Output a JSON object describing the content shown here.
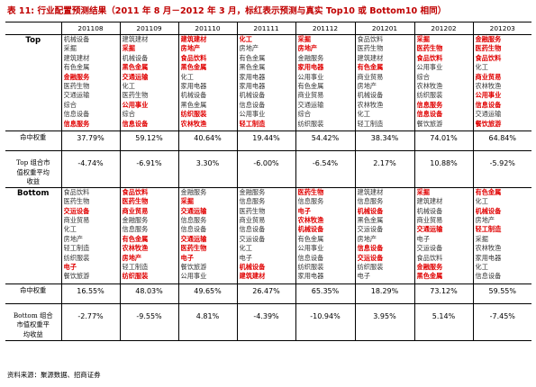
{
  "title": {
    "label": "表 11:",
    "text": "行业配置预测结果（2011 年 8 月－2012 年 3 月，标红表示预测与真实 Top10 或 Bottom10 相同）"
  },
  "columns": [
    "201108",
    "201109",
    "201110",
    "201111",
    "201112",
    "201201",
    "201202",
    "201203"
  ],
  "top": {
    "label": "Top",
    "lists": [
      [
        {
          "t": "机械设备",
          "h": false
        },
        {
          "t": "采掘",
          "h": false
        },
        {
          "t": "建筑建材",
          "h": false
        },
        {
          "t": "有色金属",
          "h": false
        },
        {
          "t": "金融服务",
          "h": true
        },
        {
          "t": "医药生物",
          "h": false
        },
        {
          "t": "交通运输",
          "h": false
        },
        {
          "t": "综合",
          "h": false
        },
        {
          "t": "信息设备",
          "h": false
        },
        {
          "t": "信息服务",
          "h": true
        }
      ],
      [
        {
          "t": "建筑建材",
          "h": false
        },
        {
          "t": "采掘",
          "h": true
        },
        {
          "t": "机械设备",
          "h": false
        },
        {
          "t": "黑色金属",
          "h": true
        },
        {
          "t": "交通运输",
          "h": true
        },
        {
          "t": "化工",
          "h": false
        },
        {
          "t": "医药生物",
          "h": false
        },
        {
          "t": "公用事业",
          "h": true
        },
        {
          "t": "综合",
          "h": false
        },
        {
          "t": "信息设备",
          "h": true
        }
      ],
      [
        {
          "t": "建筑建材",
          "h": true
        },
        {
          "t": "房地产",
          "h": true
        },
        {
          "t": "食品饮料",
          "h": true
        },
        {
          "t": "黑色金属",
          "h": true
        },
        {
          "t": "化工",
          "h": false
        },
        {
          "t": "家用电器",
          "h": false
        },
        {
          "t": "机械设备",
          "h": false
        },
        {
          "t": "黑色金属",
          "h": false
        },
        {
          "t": "纺织服装",
          "h": true
        },
        {
          "t": "农林牧渔",
          "h": true
        }
      ],
      [
        {
          "t": "化工",
          "h": true
        },
        {
          "t": "房地产",
          "h": false
        },
        {
          "t": "有色金属",
          "h": false
        },
        {
          "t": "黑色金属",
          "h": false
        },
        {
          "t": "家用电器",
          "h": false
        },
        {
          "t": "家用电器",
          "h": false
        },
        {
          "t": "机械设备",
          "h": false
        },
        {
          "t": "信息设备",
          "h": false
        },
        {
          "t": "公用事业",
          "h": false
        },
        {
          "t": "轻工制造",
          "h": true
        }
      ],
      [
        {
          "t": "采掘",
          "h": true
        },
        {
          "t": "房地产",
          "h": true
        },
        {
          "t": "金融服务",
          "h": false
        },
        {
          "t": "家用电器",
          "h": true
        },
        {
          "t": "公用事业",
          "h": false
        },
        {
          "t": "有色金属",
          "h": false
        },
        {
          "t": "商业贸易",
          "h": false
        },
        {
          "t": "交通运输",
          "h": false
        },
        {
          "t": "综合",
          "h": false
        },
        {
          "t": "纺织服装",
          "h": false
        }
      ],
      [
        {
          "t": "食品饮料",
          "h": false
        },
        {
          "t": "医药生物",
          "h": false
        },
        {
          "t": "建筑建材",
          "h": false
        },
        {
          "t": "有色金属",
          "h": true
        },
        {
          "t": "商业贸易",
          "h": false
        },
        {
          "t": "房地产",
          "h": false
        },
        {
          "t": "机械设备",
          "h": false
        },
        {
          "t": "农林牧渔",
          "h": false
        },
        {
          "t": "化工",
          "h": false
        },
        {
          "t": "轻工制造",
          "h": false
        }
      ],
      [
        {
          "t": "采掘",
          "h": true
        },
        {
          "t": "医药生物",
          "h": true
        },
        {
          "t": "食品饮料",
          "h": true
        },
        {
          "t": "公用事业",
          "h": false
        },
        {
          "t": "综合",
          "h": false
        },
        {
          "t": "农林牧渔",
          "h": false
        },
        {
          "t": "纺织服装",
          "h": false
        },
        {
          "t": "信息服务",
          "h": true
        },
        {
          "t": "信息设备",
          "h": true
        },
        {
          "t": "餐饮旅游",
          "h": false
        }
      ],
      [
        {
          "t": "金融服务",
          "h": true
        },
        {
          "t": "医药生物",
          "h": true
        },
        {
          "t": "食品饮料",
          "h": true
        },
        {
          "t": "化工",
          "h": false
        },
        {
          "t": "商业贸易",
          "h": true
        },
        {
          "t": "农林牧渔",
          "h": false
        },
        {
          "t": "公用事业",
          "h": true
        },
        {
          "t": "信息设备",
          "h": true
        },
        {
          "t": "交通运输",
          "h": false
        },
        {
          "t": "餐饮旅游",
          "h": true
        }
      ]
    ],
    "metrics": [
      {
        "label": [
          "命中权重"
        ],
        "values": [
          "37.79%",
          "59.12%",
          "40.64%",
          "19.44%",
          "54.42%",
          "38.34%",
          "74.01%",
          "64.84%"
        ]
      },
      {
        "label": [
          "Top 组合市",
          "值权重平均",
          "收益"
        ],
        "values": [
          "-4.74%",
          "-6.91%",
          "3.30%",
          "-6.00%",
          "-6.54%",
          "2.17%",
          "10.88%",
          "-5.92%"
        ]
      }
    ]
  },
  "bottom": {
    "label": "Bottom",
    "lists": [
      [
        {
          "t": "食品饮料",
          "h": false
        },
        {
          "t": "医药生物",
          "h": false
        },
        {
          "t": "交运设备",
          "h": true
        },
        {
          "t": "商业贸易",
          "h": false
        },
        {
          "t": "化工",
          "h": false
        },
        {
          "t": "房地产",
          "h": false
        },
        {
          "t": "轻工制造",
          "h": false
        },
        {
          "t": "纺织服装",
          "h": false
        },
        {
          "t": "电子",
          "h": true
        },
        {
          "t": "餐饮旅游",
          "h": false
        }
      ],
      [
        {
          "t": "食品饮料",
          "h": true
        },
        {
          "t": "医药生物",
          "h": true
        },
        {
          "t": "商业贸易",
          "h": true
        },
        {
          "t": "金融服务",
          "h": false
        },
        {
          "t": "信息服务",
          "h": false
        },
        {
          "t": "有色金属",
          "h": true
        },
        {
          "t": "农林牧渔",
          "h": true
        },
        {
          "t": "房地产",
          "h": true
        },
        {
          "t": "轻工制造",
          "h": false
        },
        {
          "t": "纺织服装",
          "h": true
        }
      ],
      [
        {
          "t": "金融服务",
          "h": false
        },
        {
          "t": "采掘",
          "h": true
        },
        {
          "t": "交通运输",
          "h": true
        },
        {
          "t": "信息服务",
          "h": false
        },
        {
          "t": "信息设备",
          "h": false
        },
        {
          "t": "交通运输",
          "h": true
        },
        {
          "t": "医药生物",
          "h": true
        },
        {
          "t": "电子",
          "h": true
        },
        {
          "t": "餐饮旅游",
          "h": false
        },
        {
          "t": "公用事业",
          "h": false
        }
      ],
      [
        {
          "t": "金融服务",
          "h": false
        },
        {
          "t": "信息服务",
          "h": false
        },
        {
          "t": "医药生物",
          "h": false
        },
        {
          "t": "商业贸易",
          "h": false
        },
        {
          "t": "信息设备",
          "h": false
        },
        {
          "t": "交运设备",
          "h": false
        },
        {
          "t": "化工",
          "h": false
        },
        {
          "t": "电子",
          "h": false
        },
        {
          "t": "机械设备",
          "h": true
        },
        {
          "t": "建筑建材",
          "h": true
        }
      ],
      [
        {
          "t": "医药生物",
          "h": true
        },
        {
          "t": "信息服务",
          "h": false
        },
        {
          "t": "电子",
          "h": true
        },
        {
          "t": "农林牧渔",
          "h": true
        },
        {
          "t": "机械设备",
          "h": true
        },
        {
          "t": "有色金属",
          "h": false
        },
        {
          "t": "公用事业",
          "h": false
        },
        {
          "t": "信息设备",
          "h": false
        },
        {
          "t": "纺织服装",
          "h": false
        },
        {
          "t": "家用电器",
          "h": false
        }
      ],
      [
        {
          "t": "建筑建材",
          "h": false
        },
        {
          "t": "信息服务",
          "h": false
        },
        {
          "t": "机械设备",
          "h": true
        },
        {
          "t": "黑色金属",
          "h": false
        },
        {
          "t": "交运设备",
          "h": false
        },
        {
          "t": "房地产",
          "h": false
        },
        {
          "t": "信息设备",
          "h": true
        },
        {
          "t": "交运设备",
          "h": true
        },
        {
          "t": "纺织服装",
          "h": false
        },
        {
          "t": "电子",
          "h": false
        }
      ],
      [
        {
          "t": "采掘",
          "h": true
        },
        {
          "t": "建筑建材",
          "h": false
        },
        {
          "t": "机械设备",
          "h": false
        },
        {
          "t": "商业贸易",
          "h": false
        },
        {
          "t": "交通运输",
          "h": true
        },
        {
          "t": "电子",
          "h": false
        },
        {
          "t": "交运设备",
          "h": false
        },
        {
          "t": "食品饮料",
          "h": false
        },
        {
          "t": "金融服务",
          "h": true
        },
        {
          "t": "黑色金属",
          "h": true
        }
      ],
      [
        {
          "t": "有色金属",
          "h": true
        },
        {
          "t": "化工",
          "h": false
        },
        {
          "t": "机械设备",
          "h": true
        },
        {
          "t": "房地产",
          "h": false
        },
        {
          "t": "轻工制造",
          "h": true
        },
        {
          "t": "采掘",
          "h": false
        },
        {
          "t": "农林牧渔",
          "h": false
        },
        {
          "t": "家用电器",
          "h": false
        },
        {
          "t": "化工",
          "h": false
        },
        {
          "t": "信息设备",
          "h": false
        }
      ]
    ],
    "metrics": [
      {
        "label": [
          "命中权重"
        ],
        "values": [
          "16.55%",
          "48.03%",
          "49.65%",
          "26.47%",
          "65.35%",
          "18.29%",
          "73.12%",
          "59.55%"
        ]
      },
      {
        "label": [
          "Bottom 组合",
          "市值权重平",
          "均收益"
        ],
        "values": [
          "-2.77%",
          "-9.55%",
          "4.81%",
          "-4.39%",
          "-10.94%",
          "3.95%",
          "5.14%",
          "-7.45%"
        ]
      }
    ]
  },
  "source": "资料来源：聚源数据、招商证券",
  "colors": {
    "highlight": "#e00000",
    "title": "#c00000",
    "text": "#333333"
  }
}
